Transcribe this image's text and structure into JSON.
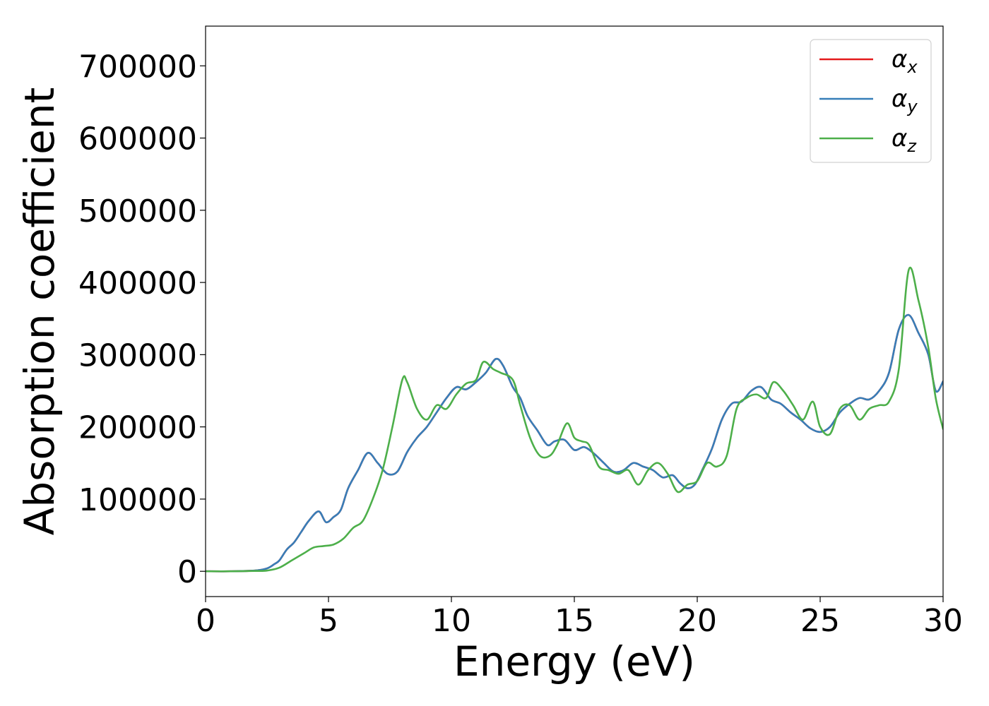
{
  "chart_data": {
    "type": "line",
    "xlabel": "Energy (eV)",
    "ylabel": "Absorption coefficient",
    "xlim": [
      0,
      30
    ],
    "ylim": [
      -35000,
      755000
    ],
    "xticks": [
      0,
      5,
      10,
      15,
      20,
      25,
      30
    ],
    "yticks": [
      0,
      100000,
      200000,
      300000,
      400000,
      500000,
      600000,
      700000
    ],
    "grid": false,
    "legend_position": "top-right",
    "series": [
      {
        "name": "α",
        "subscript": "x",
        "color": "#e41a1c",
        "x": [
          0,
          1,
          2,
          2.5,
          2.8,
          3.0,
          3.3,
          3.6,
          3.9,
          4.2,
          4.6,
          4.9,
          5.2,
          5.5,
          5.8,
          6.2,
          6.6,
          7.0,
          7.4,
          7.8,
          8.2,
          8.6,
          9.0,
          9.4,
          9.8,
          10.2,
          10.6,
          11.0,
          11.4,
          11.8,
          12.1,
          12.5,
          12.8,
          13.1,
          13.5,
          13.9,
          14.2,
          14.6,
          15.0,
          15.4,
          15.8,
          16.2,
          16.6,
          17.0,
          17.4,
          17.8,
          18.2,
          18.6,
          19.0,
          19.3,
          19.6,
          19.9,
          20.2,
          20.6,
          21.0,
          21.4,
          21.8,
          22.2,
          22.6,
          23.0,
          23.4,
          23.8,
          24.2,
          24.6,
          25.0,
          25.4,
          25.8,
          26.2,
          26.6,
          27.0,
          27.4,
          27.8,
          28.2,
          28.6,
          29.0,
          29.4,
          29.7,
          30.0
        ],
        "y": [
          0,
          0,
          1000,
          4000,
          10000,
          15000,
          30000,
          40000,
          55000,
          70000,
          83000,
          68000,
          75000,
          85000,
          115000,
          140000,
          164000,
          150000,
          135000,
          138000,
          165000,
          185000,
          200000,
          220000,
          240000,
          255000,
          252000,
          262000,
          275000,
          294000,
          285000,
          255000,
          240000,
          215000,
          195000,
          175000,
          180000,
          182000,
          168000,
          172000,
          163000,
          150000,
          138000,
          140000,
          150000,
          145000,
          140000,
          130000,
          133000,
          122000,
          115000,
          120000,
          140000,
          170000,
          210000,
          232000,
          235000,
          250000,
          255000,
          238000,
          232000,
          220000,
          210000,
          198000,
          193000,
          200000,
          220000,
          232000,
          240000,
          238000,
          250000,
          275000,
          335000,
          355000,
          330000,
          300000,
          250000,
          263000
        ]
      },
      {
        "name": "α",
        "subscript": "y",
        "color": "#377eb8",
        "x": [
          0,
          1,
          2,
          2.5,
          2.8,
          3.0,
          3.3,
          3.6,
          3.9,
          4.2,
          4.6,
          4.9,
          5.2,
          5.5,
          5.8,
          6.2,
          6.6,
          7.0,
          7.4,
          7.8,
          8.2,
          8.6,
          9.0,
          9.4,
          9.8,
          10.2,
          10.6,
          11.0,
          11.4,
          11.8,
          12.1,
          12.5,
          12.8,
          13.1,
          13.5,
          13.9,
          14.2,
          14.6,
          15.0,
          15.4,
          15.8,
          16.2,
          16.6,
          17.0,
          17.4,
          17.8,
          18.2,
          18.6,
          19.0,
          19.3,
          19.6,
          19.9,
          20.2,
          20.6,
          21.0,
          21.4,
          21.8,
          22.2,
          22.6,
          23.0,
          23.4,
          23.8,
          24.2,
          24.6,
          25.0,
          25.4,
          25.8,
          26.2,
          26.6,
          27.0,
          27.4,
          27.8,
          28.2,
          28.6,
          29.0,
          29.4,
          29.7,
          30.0
        ],
        "y": [
          0,
          0,
          1000,
          4000,
          10000,
          15000,
          30000,
          40000,
          55000,
          70000,
          83000,
          68000,
          75000,
          85000,
          115000,
          140000,
          164000,
          150000,
          135000,
          138000,
          165000,
          185000,
          200000,
          220000,
          240000,
          255000,
          252000,
          262000,
          275000,
          294000,
          285000,
          255000,
          240000,
          215000,
          195000,
          175000,
          180000,
          182000,
          168000,
          172000,
          163000,
          150000,
          138000,
          140000,
          150000,
          145000,
          140000,
          130000,
          133000,
          122000,
          115000,
          120000,
          140000,
          170000,
          210000,
          232000,
          235000,
          250000,
          255000,
          238000,
          232000,
          220000,
          210000,
          198000,
          193000,
          200000,
          220000,
          232000,
          240000,
          238000,
          250000,
          275000,
          335000,
          355000,
          330000,
          300000,
          250000,
          263000
        ]
      },
      {
        "name": "α",
        "subscript": "z",
        "color": "#4daf4a",
        "x": [
          0,
          1,
          2,
          2.5,
          3.0,
          3.5,
          4.0,
          4.4,
          4.8,
          5.2,
          5.6,
          6.0,
          6.4,
          6.8,
          7.2,
          7.6,
          8.0,
          8.2,
          8.6,
          9.0,
          9.4,
          9.8,
          10.2,
          10.6,
          11.0,
          11.3,
          11.7,
          12.0,
          12.5,
          12.8,
          13.2,
          13.6,
          14.0,
          14.3,
          14.7,
          15.0,
          15.3,
          15.6,
          16.0,
          16.4,
          16.8,
          17.2,
          17.6,
          18.0,
          18.4,
          18.8,
          19.2,
          19.6,
          20.0,
          20.4,
          20.8,
          21.2,
          21.6,
          22.0,
          22.4,
          22.8,
          23.1,
          23.5,
          23.9,
          24.3,
          24.7,
          25.0,
          25.4,
          25.8,
          26.2,
          26.6,
          27.0,
          27.4,
          27.8,
          28.2,
          28.6,
          29.0,
          29.4,
          29.7,
          30.0
        ],
        "y": [
          0,
          0,
          500,
          1000,
          5000,
          15000,
          25000,
          33000,
          35000,
          37000,
          45000,
          60000,
          70000,
          100000,
          140000,
          200000,
          265000,
          262000,
          225000,
          210000,
          230000,
          225000,
          245000,
          260000,
          265000,
          290000,
          280000,
          275000,
          265000,
          230000,
          185000,
          160000,
          160000,
          175000,
          205000,
          185000,
          180000,
          175000,
          145000,
          140000,
          135000,
          140000,
          120000,
          140000,
          150000,
          135000,
          110000,
          120000,
          125000,
          150000,
          145000,
          160000,
          225000,
          240000,
          245000,
          240000,
          262000,
          250000,
          230000,
          210000,
          235000,
          200000,
          190000,
          225000,
          230000,
          210000,
          225000,
          230000,
          235000,
          280000,
          417000,
          375000,
          310000,
          240000,
          197000
        ]
      }
    ]
  }
}
